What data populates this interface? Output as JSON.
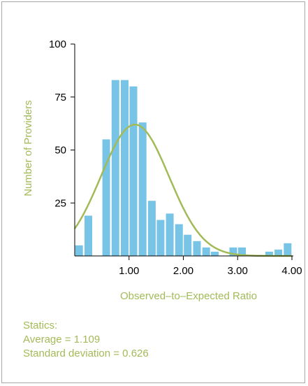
{
  "chart_data": {
    "type": "bar",
    "xlabel": "Observed–to–Expected Ratio",
    "ylabel": "Number of Providers",
    "xlim": [
      0.0,
      4.0
    ],
    "ylim": [
      0,
      100
    ],
    "x_ticks": [
      1.0,
      2.0,
      3.0,
      4.0
    ],
    "x_tick_labels": [
      "1.00",
      "2.00",
      "3.00",
      "4.00"
    ],
    "y_ticks": [
      25,
      50,
      75,
      100
    ],
    "y_tick_labels": [
      "25",
      "50",
      "75",
      "100"
    ],
    "bin_width": 0.1667,
    "bins": [
      {
        "x": 0.08,
        "value": 5
      },
      {
        "x": 0.25,
        "value": 19
      },
      {
        "x": 0.42,
        "value": 0
      },
      {
        "x": 0.58,
        "value": 55
      },
      {
        "x": 0.75,
        "value": 83
      },
      {
        "x": 0.92,
        "value": 83
      },
      {
        "x": 1.08,
        "value": 80
      },
      {
        "x": 1.25,
        "value": 63
      },
      {
        "x": 1.42,
        "value": 26
      },
      {
        "x": 1.58,
        "value": 17
      },
      {
        "x": 1.75,
        "value": 20
      },
      {
        "x": 1.92,
        "value": 15
      },
      {
        "x": 2.08,
        "value": 10
      },
      {
        "x": 2.25,
        "value": 7
      },
      {
        "x": 2.42,
        "value": 4
      },
      {
        "x": 2.58,
        "value": 2
      },
      {
        "x": 2.75,
        "value": 0
      },
      {
        "x": 2.92,
        "value": 4
      },
      {
        "x": 3.08,
        "value": 4
      },
      {
        "x": 3.25,
        "value": 0
      },
      {
        "x": 3.42,
        "value": 0
      },
      {
        "x": 3.58,
        "value": 2
      },
      {
        "x": 3.75,
        "value": 3
      },
      {
        "x": 3.92,
        "value": 6
      }
    ],
    "normal_curve": {
      "mean": 1.109,
      "sd": 0.626,
      "peak": 62
    },
    "colors": {
      "bars": "#78c4e6",
      "curve": "#a3ba58",
      "labels": "#a3ba58",
      "axis": "#000000"
    },
    "grid": false,
    "legend": "none"
  },
  "stats": {
    "heading": "Statics:",
    "average": "Average = 1.109",
    "sd": "Standard deviation = 0.626"
  }
}
